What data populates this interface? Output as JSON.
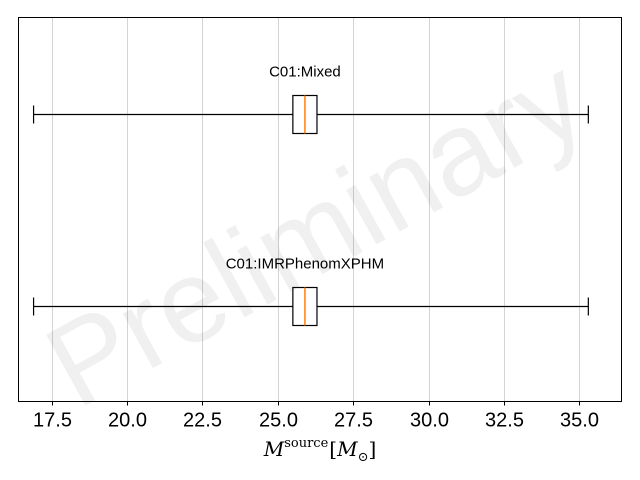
{
  "chart_data": {
    "type": "boxplot",
    "orientation": "horizontal",
    "xlabel": {
      "symbol": "M",
      "superscript": "source",
      "unit_open": "[",
      "unit_symbol": "M",
      "unit_sub": "⊙",
      "unit_close": "]"
    },
    "xlim": [
      16.4,
      36.4
    ],
    "xticks": [
      17.5,
      20.0,
      22.5,
      25.0,
      27.5,
      30.0,
      32.5,
      35.0
    ],
    "xtick_labels": [
      "17.5",
      "20.0",
      "22.5",
      "25.0",
      "27.5",
      "30.0",
      "32.5",
      "35.0"
    ],
    "grid": "x",
    "series": [
      {
        "name": "C01:Mixed",
        "whisker_low": 16.9,
        "q1": 25.5,
        "median": 25.9,
        "q3": 26.3,
        "whisker_high": 35.3
      },
      {
        "name": "C01:IMRPhenomXPHM",
        "whisker_low": 16.9,
        "q1": 25.5,
        "median": 25.9,
        "q3": 26.3,
        "whisker_high": 35.3
      }
    ],
    "colors": {
      "box": "#000000",
      "median": "#ff7f0e",
      "grid": "#c8c8c8",
      "axes": "#000000"
    },
    "watermark": "Preliminary"
  }
}
